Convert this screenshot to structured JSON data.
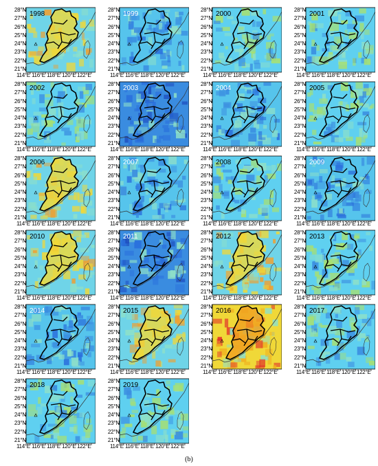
{
  "figure": {
    "caption": "(b)",
    "latitude_labels": [
      "28°N",
      "27°N",
      "26°N",
      "25°N",
      "24°N",
      "23°N",
      "22°N",
      "21°N"
    ],
    "longitude_labels": [
      "114°E",
      "116°E",
      "118°E",
      "120°E",
      "122°E"
    ],
    "colors": {
      "background_field": "#5fd0f0",
      "warm": "#f0d838",
      "hot": "#e0302a",
      "cool": "#2a6fdc",
      "outline": "#000000"
    },
    "panels": [
      {
        "year": "1998",
        "tone": "warm"
      },
      {
        "year": "1999",
        "tone": "cool"
      },
      {
        "year": "2000",
        "tone": "neutral"
      },
      {
        "year": "2001",
        "tone": "neutral"
      },
      {
        "year": "2002",
        "tone": "neutral"
      },
      {
        "year": "2003",
        "tone": "cold"
      },
      {
        "year": "2004",
        "tone": "cool"
      },
      {
        "year": "2005",
        "tone": "neutral"
      },
      {
        "year": "2006",
        "tone": "warm"
      },
      {
        "year": "2007",
        "tone": "cool"
      },
      {
        "year": "2008",
        "tone": "neutral"
      },
      {
        "year": "2009",
        "tone": "cool"
      },
      {
        "year": "2010",
        "tone": "warm"
      },
      {
        "year": "2011",
        "tone": "cold"
      },
      {
        "year": "2012",
        "tone": "warm"
      },
      {
        "year": "2013",
        "tone": "neutral"
      },
      {
        "year": "2014",
        "tone": "cool"
      },
      {
        "year": "2015",
        "tone": "warm"
      },
      {
        "year": "2016",
        "tone": "hot"
      },
      {
        "year": "2017",
        "tone": "neutral"
      },
      {
        "year": "2018",
        "tone": "neutral"
      },
      {
        "year": "2019",
        "tone": "neutral"
      }
    ]
  }
}
